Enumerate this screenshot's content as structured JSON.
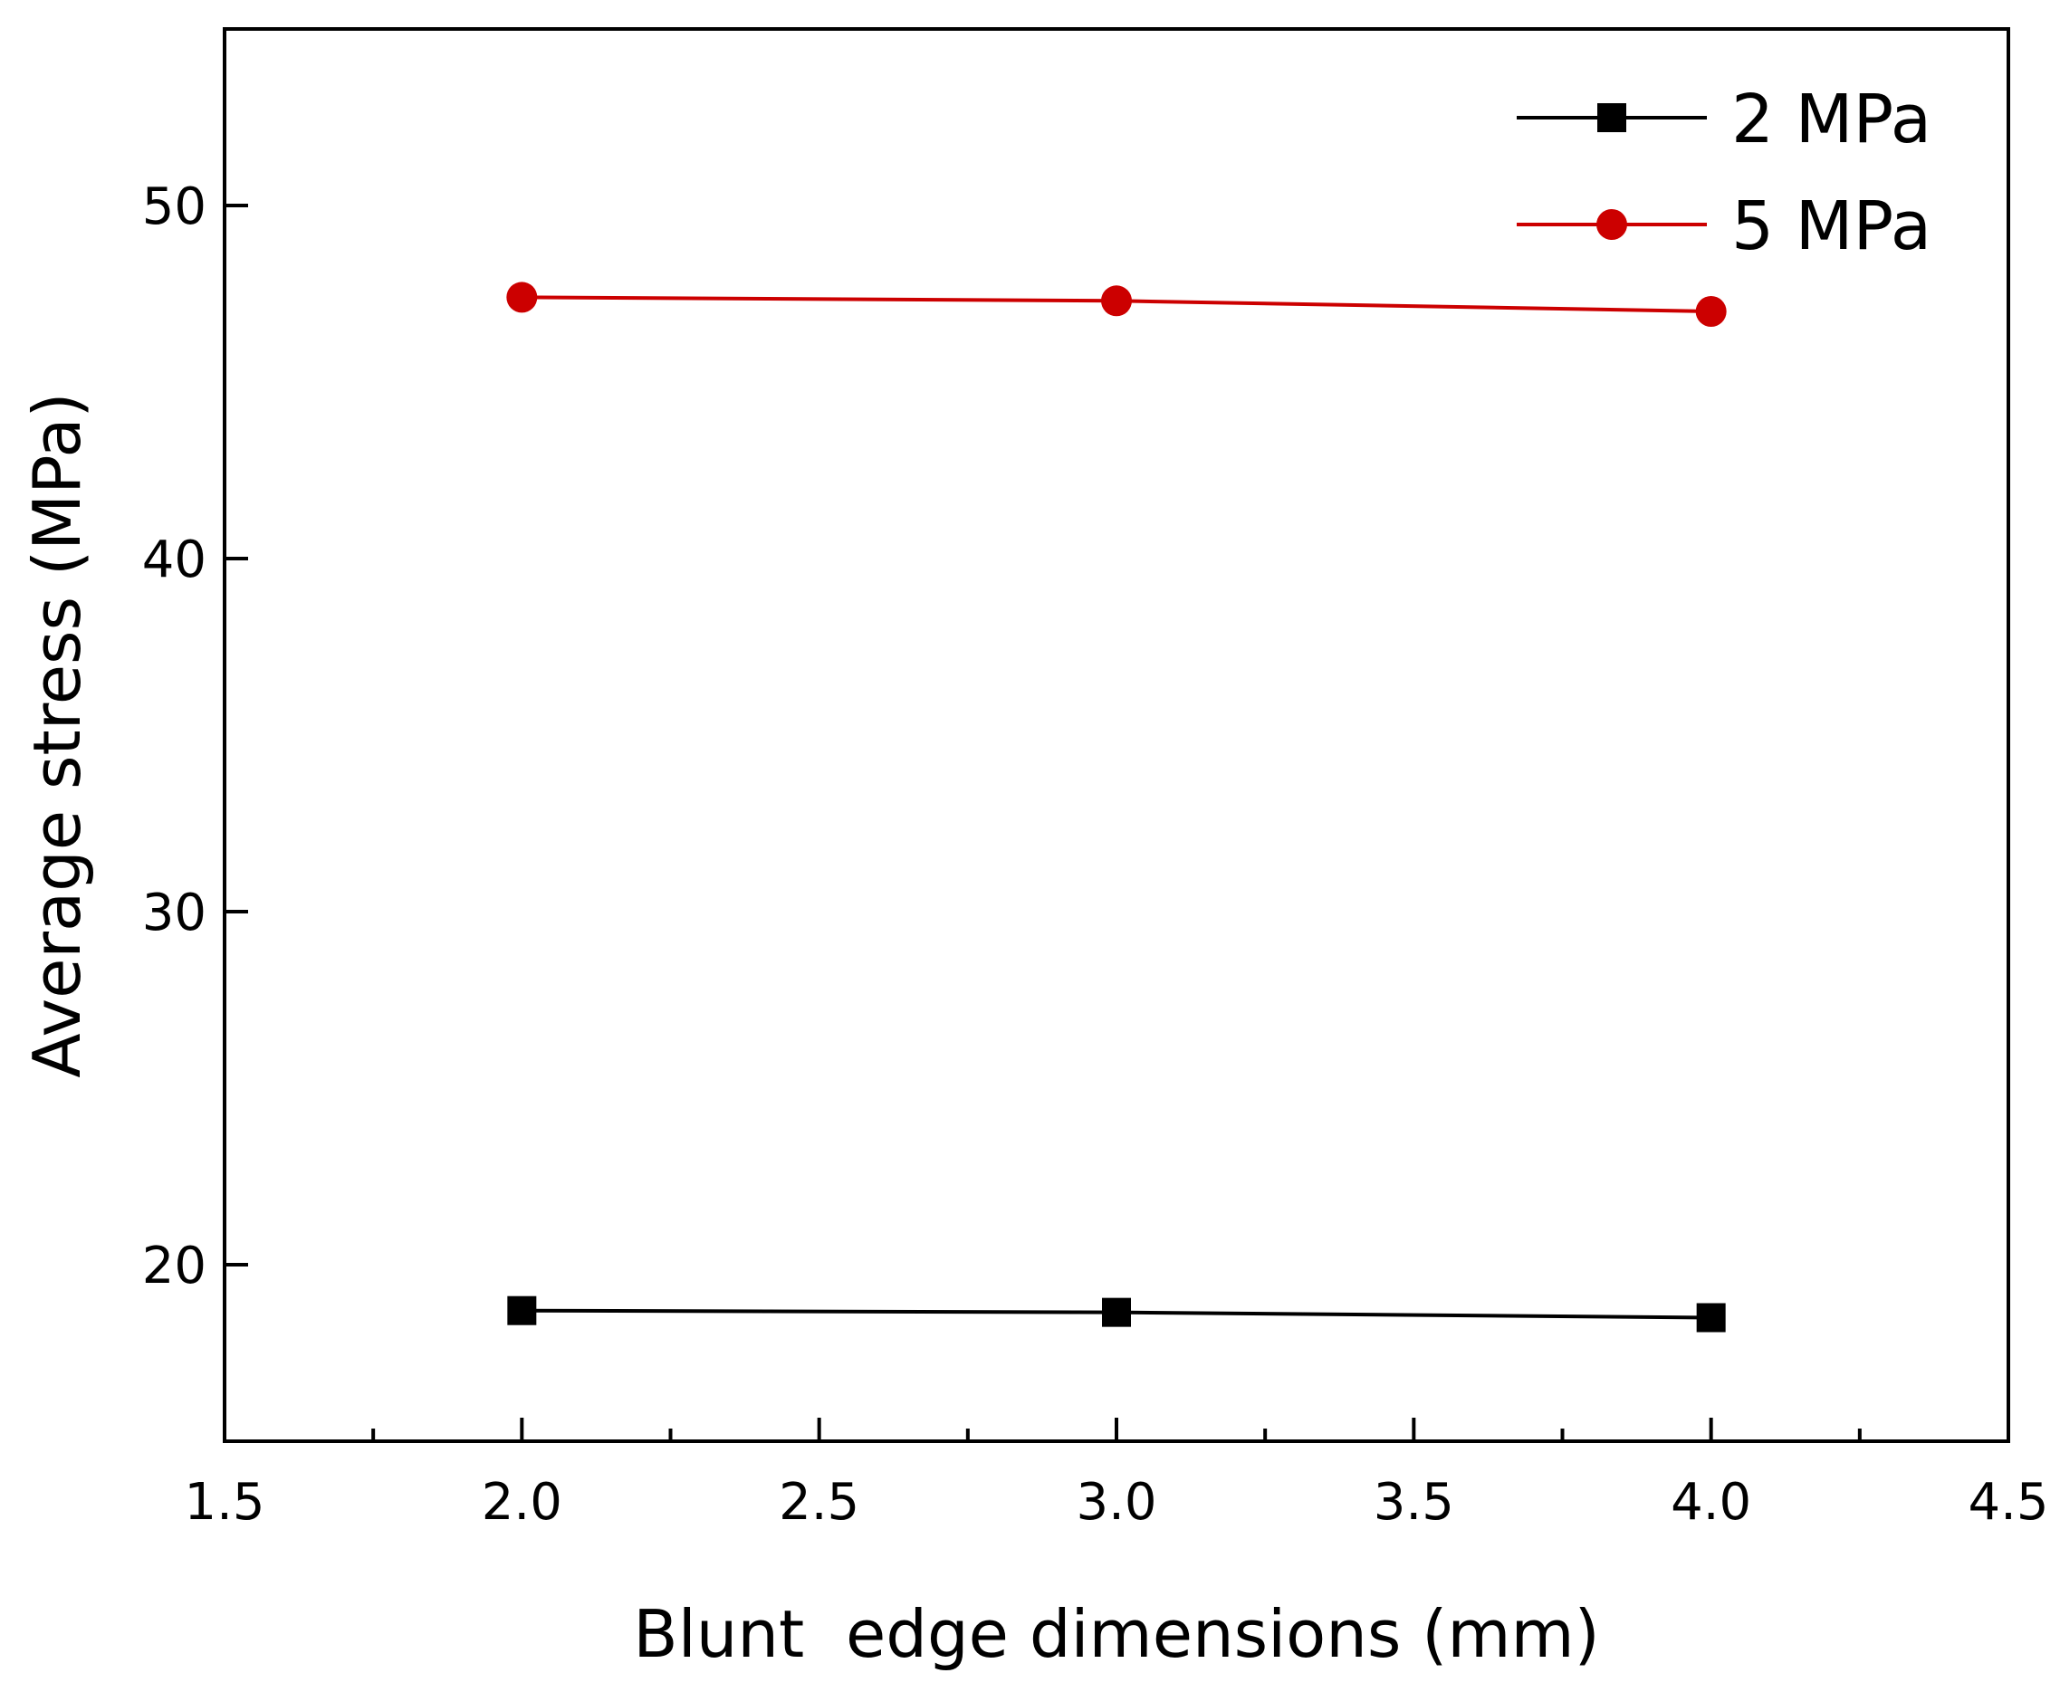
{
  "chart_data": {
    "type": "line",
    "title": "",
    "xlabel": "Blunt  edge dimensions (mm)",
    "ylabel": "Average stress (MPa)",
    "xlim": [
      1.5,
      4.5
    ],
    "ylim": [
      15,
      55
    ],
    "x_ticks": [
      "1.5",
      "2.0",
      "2.5",
      "3.0",
      "3.5",
      "4.0",
      "4.5"
    ],
    "y_ticks": [
      "20",
      "30",
      "40",
      "50"
    ],
    "grid": false,
    "legend_position": "top-right",
    "x": [
      2.0,
      3.0,
      4.0
    ],
    "series": [
      {
        "name": "2 MPa",
        "color": "#000000",
        "marker": "square",
        "values": [
          18.7,
          18.65,
          18.5
        ]
      },
      {
        "name": "5 MPa",
        "color": "#cc0000",
        "marker": "circle",
        "values": [
          47.4,
          47.3,
          47.0
        ]
      }
    ]
  }
}
